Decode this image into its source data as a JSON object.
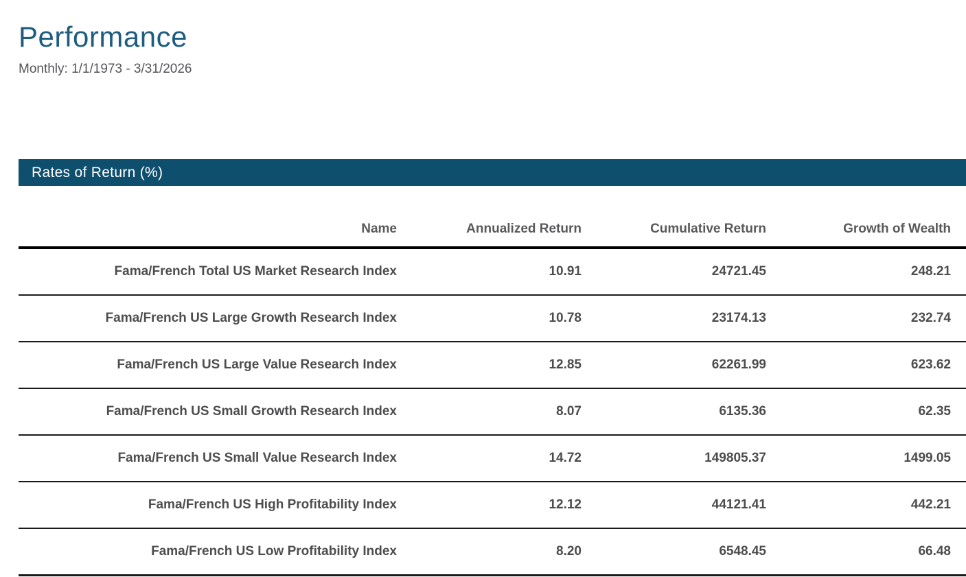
{
  "page": {
    "title": "Performance",
    "subtitle": "Monthly: 1/1/1973 - 3/31/2026"
  },
  "section": {
    "header": "Rates of Return (%)"
  },
  "colors": {
    "title_text": "#1d5d80",
    "section_header_bg": "#0e4f6e",
    "section_header_text": "#ffffff",
    "table_text": "#4d4d4f",
    "header_text": "#58595b"
  },
  "table": {
    "columns": [
      "Name",
      "Annualized Return",
      "Cumulative Return",
      "Growth of Wealth"
    ],
    "rows": [
      {
        "name": "Fama/French Total US Market Research Index",
        "annualized_return": "10.91",
        "cumulative_return": "24721.45",
        "growth_of_wealth": "248.21"
      },
      {
        "name": "Fama/French US Large Growth Research Index",
        "annualized_return": "10.78",
        "cumulative_return": "23174.13",
        "growth_of_wealth": "232.74"
      },
      {
        "name": "Fama/French US Large Value Research Index",
        "annualized_return": "12.85",
        "cumulative_return": "62261.99",
        "growth_of_wealth": "623.62"
      },
      {
        "name": "Fama/French US Small Growth Research Index",
        "annualized_return": "8.07",
        "cumulative_return": "6135.36",
        "growth_of_wealth": "62.35"
      },
      {
        "name": "Fama/French US Small Value Research Index",
        "annualized_return": "14.72",
        "cumulative_return": "149805.37",
        "growth_of_wealth": "1499.05"
      },
      {
        "name": "Fama/French US High Profitability Index",
        "annualized_return": "12.12",
        "cumulative_return": "44121.41",
        "growth_of_wealth": "442.21"
      },
      {
        "name": "Fama/French US Low Profitability Index",
        "annualized_return": "8.20",
        "cumulative_return": "6548.45",
        "growth_of_wealth": "66.48"
      }
    ]
  }
}
